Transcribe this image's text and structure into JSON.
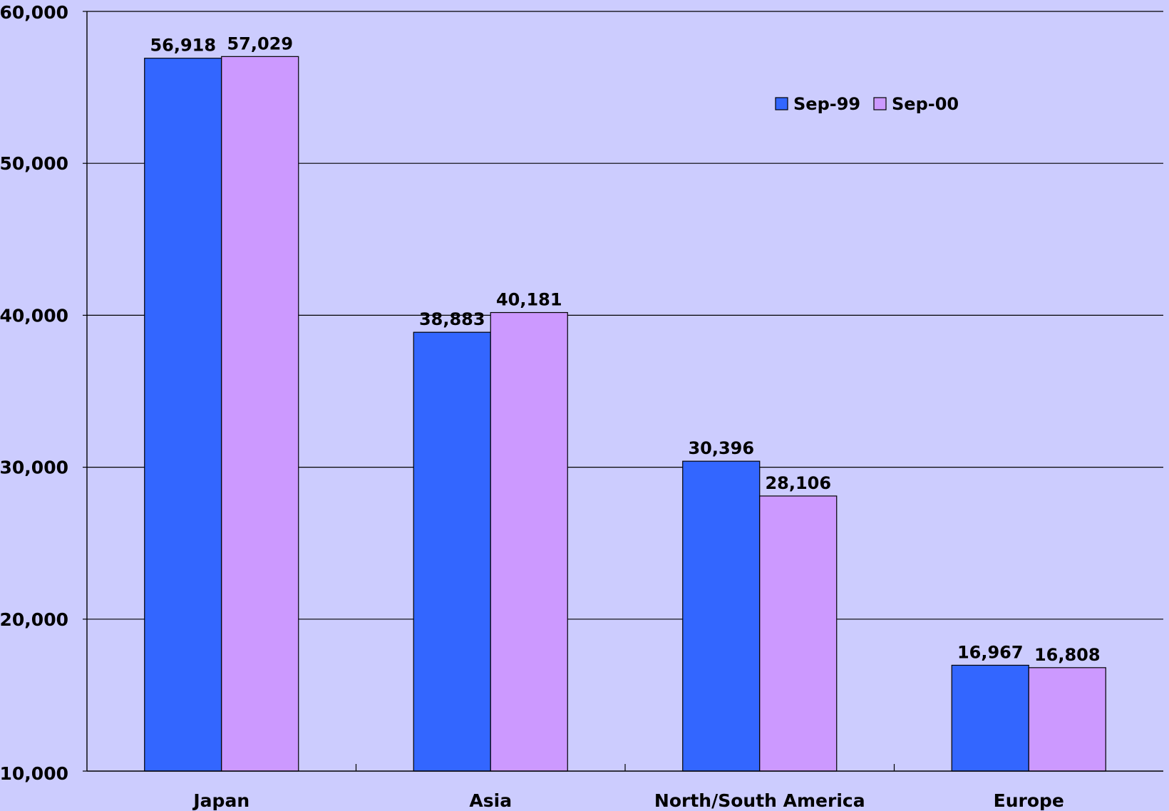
{
  "chart_data": {
    "type": "bar",
    "categories": [
      "Japan",
      "Asia",
      "North/South America",
      "Europe"
    ],
    "series": [
      {
        "name": "Sep-99",
        "values": [
          56918,
          38883,
          30396,
          16967
        ],
        "labels": [
          "56,918",
          "38,883",
          "30,396",
          "16,967"
        ]
      },
      {
        "name": "Sep-00",
        "values": [
          57029,
          40181,
          28106,
          16808
        ],
        "labels": [
          "57,029",
          "40,181",
          "28,106",
          "16,808"
        ]
      }
    ],
    "title": "",
    "xlabel": "",
    "ylabel": "",
    "ylim": [
      10000,
      60000
    ],
    "yticks": [
      10000,
      20000,
      30000,
      40000,
      50000,
      60000
    ],
    "ytick_labels": [
      "10,000",
      "20,000",
      "30,000",
      "40,000",
      "50,000",
      "60,000"
    ],
    "grid": true,
    "legend_position": "top-right",
    "colors": {
      "background": "#ccccfe",
      "series": [
        "#3366ff",
        "#cc99ff"
      ],
      "gridline": "#000000"
    }
  }
}
